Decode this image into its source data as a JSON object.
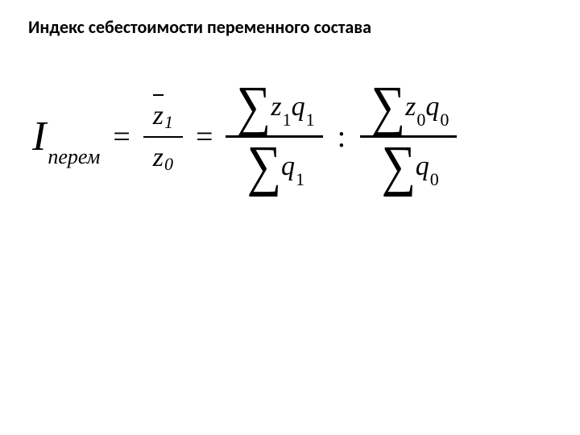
{
  "title": "Индекс себестоимости переменного состава",
  "formula": {
    "lhs_var": "I",
    "lhs_sub": "перем",
    "eq": "=",
    "zbar1": {
      "z": "z",
      "sub": "1"
    },
    "zbar0": {
      "z": "z",
      "sub": "0"
    },
    "sigma": "∑",
    "colon": ":",
    "term_z1": {
      "v": "z",
      "s": "1"
    },
    "term_q1": {
      "v": "q",
      "s": "1"
    },
    "term_z0": {
      "v": "z",
      "s": "0"
    },
    "term_q0": {
      "v": "q",
      "s": "0"
    }
  },
  "colors": {
    "text": "#000000",
    "background": "#ffffff"
  },
  "fonts": {
    "title_family": "Calibri",
    "formula_family": "Times New Roman",
    "title_weight": "bold",
    "title_size_pt": 17,
    "lhs_size_pt": 39
  }
}
